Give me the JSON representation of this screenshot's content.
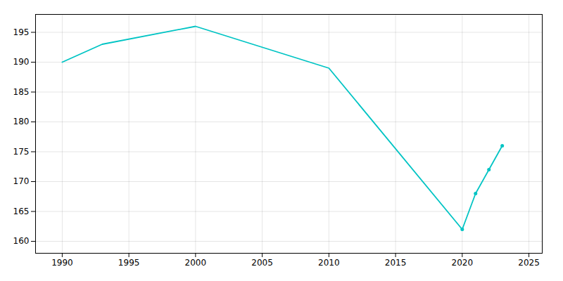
{
  "chart_data": {
    "type": "line",
    "x": [
      1990,
      1993,
      2000,
      2010,
      2020,
      2021,
      2022,
      2023
    ],
    "series": [
      {
        "type": "line",
        "color": "#00C4C4",
        "values": [
          190,
          193,
          196,
          189,
          162,
          168,
          172,
          176
        ]
      },
      {
        "type": "scatter",
        "color": "#00C4C4",
        "marker": "o",
        "values": [
          null,
          null,
          null,
          null,
          162,
          168,
          172,
          176
        ]
      }
    ],
    "xlim": [
      1988,
      2026
    ],
    "xticks": [
      1990,
      1995,
      2000,
      2005,
      2010,
      2015,
      2020,
      2025
    ],
    "ylim": [
      158,
      198
    ],
    "yticks": [
      160,
      165,
      170,
      175,
      180,
      185,
      190,
      195
    ],
    "grid": true
  }
}
